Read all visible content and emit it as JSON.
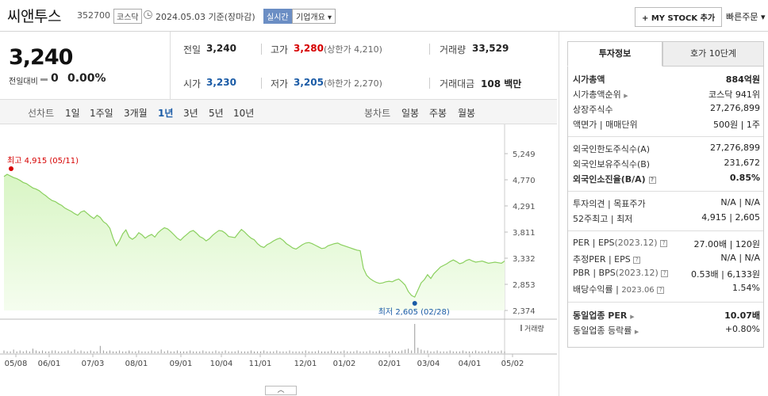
{
  "header": {
    "name": "씨앤투스",
    "code": "352700",
    "market": "코스닥",
    "date": "2024.05.03",
    "basis": "기준(장마감)",
    "realtime": "실시간",
    "company_info": "기업개요 ▾",
    "mystock": "+ MY STOCK 추가",
    "quick_order": "빠른주문 ▾"
  },
  "price": {
    "current": "3,240",
    "change_label": "전일대비",
    "change_value": "0",
    "change_pct": "0.00%"
  },
  "quote": {
    "prev_label": "전일",
    "prev": "3,240",
    "high_label": "고가",
    "high": "3,280",
    "upper_limit": "(상한가 4,210)",
    "volume_label": "거래량",
    "volume": "33,529",
    "open_label": "시가",
    "open": "3,230",
    "low_label": "저가",
    "low": "3,205",
    "lower_limit": "(하한가 2,270)",
    "amount_label": "거래대금",
    "amount": "108 백만"
  },
  "period": {
    "line_label": "선차트",
    "ranges": [
      "1일",
      "1주일",
      "3개월",
      "1년",
      "3년",
      "5년",
      "10년"
    ],
    "candle_label": "봉차트",
    "candles": [
      "일봉",
      "주봉",
      "월봉"
    ]
  },
  "chart_data": {
    "type": "area",
    "x_ticks": [
      "05/08",
      "06/01",
      "07/03",
      "08/01",
      "09/01",
      "10/04",
      "11/01",
      "12/01",
      "01/02",
      "02/01",
      "03/04",
      "04/01",
      "05/02"
    ],
    "y_ticks": [
      "5,249",
      "4,770",
      "4,291",
      "3,811",
      "3,332",
      "2,853",
      "2,374"
    ],
    "ylim": [
      2374,
      5249
    ],
    "high_label": "최고 4,915 (05/11)",
    "low_label": "최저 2,605 (02/28)",
    "volume_label": "거래량",
    "series": [
      {
        "values": [
          4830,
          4870,
          4840,
          4810,
          4790,
          4760,
          4720,
          4700,
          4660,
          4620,
          4600,
          4570,
          4520,
          4480,
          4430,
          4390,
          4370,
          4330,
          4300,
          4250,
          4220,
          4190,
          4150,
          4120,
          4180,
          4200,
          4150,
          4100,
          4060,
          4120,
          4080,
          4000,
          3960,
          3880,
          3700,
          3560,
          3650,
          3780,
          3850,
          3720,
          3680,
          3720,
          3800,
          3760,
          3700,
          3740,
          3770,
          3720,
          3800,
          3850,
          3890,
          3870,
          3820,
          3760,
          3700,
          3660,
          3720,
          3770,
          3820,
          3840,
          3790,
          3730,
          3700,
          3650,
          3690,
          3750,
          3800,
          3840,
          3830,
          3790,
          3730,
          3720,
          3710,
          3790,
          3860,
          3810,
          3750,
          3700,
          3670,
          3600,
          3550,
          3530,
          3580,
          3610,
          3650,
          3680,
          3700,
          3660,
          3600,
          3560,
          3520,
          3500,
          3540,
          3580,
          3610,
          3620,
          3600,
          3570,
          3540,
          3510,
          3520,
          3560,
          3580,
          3600,
          3610,
          3580,
          3560,
          3540,
          3520,
          3500,
          3480,
          3470,
          3150,
          3020,
          2960,
          2920,
          2890,
          2870,
          2880,
          2900,
          2910,
          2900,
          2930,
          2950,
          2900,
          2840,
          2720,
          2650,
          2620,
          2750,
          2880,
          2940,
          3030,
          2960,
          3050,
          3110,
          3170,
          3200,
          3230,
          3270,
          3300,
          3270,
          3230,
          3250,
          3290,
          3310,
          3280,
          3260,
          3270,
          3280,
          3260,
          3240,
          3250,
          3260,
          3250,
          3240,
          3280
        ]
      }
    ],
    "volume": [
      3,
      2,
      2,
      4,
      2,
      3,
      2,
      3,
      2,
      5,
      3,
      2,
      3,
      2,
      2,
      3,
      3,
      2,
      2,
      2,
      3,
      2,
      4,
      2,
      3,
      2,
      2,
      3,
      2,
      2,
      8,
      3,
      2,
      3,
      2,
      2,
      3,
      2,
      2,
      2,
      3,
      2,
      2,
      3,
      2,
      2,
      2,
      3,
      2,
      2,
      4,
      2,
      3,
      2,
      2,
      3,
      2,
      2,
      2,
      3,
      2,
      2,
      2,
      3,
      2,
      2,
      2,
      3,
      2,
      2,
      3,
      2,
      2,
      2,
      3,
      2,
      2,
      2,
      3,
      2,
      2,
      2,
      3,
      2,
      2,
      2,
      3,
      2,
      2,
      2,
      3,
      2,
      2,
      2,
      2,
      3,
      2,
      2,
      2,
      3,
      2,
      2,
      2,
      3,
      2,
      2,
      2,
      3,
      2,
      2,
      2,
      3,
      2,
      2,
      2,
      3,
      2,
      2,
      2,
      3,
      2,
      2,
      2,
      3,
      2,
      2,
      3,
      4,
      5,
      3,
      32,
      6,
      4,
      3,
      3,
      2,
      2,
      3,
      2,
      2,
      2,
      3,
      2,
      2,
      2,
      3,
      2,
      2,
      2,
      3,
      2,
      2,
      2,
      3,
      2,
      2,
      2,
      3,
      2
    ]
  },
  "info": {
    "tab_active": "투자정보",
    "tab_other": "호가 10단계",
    "market_cap_label": "시가총액",
    "market_cap": "884억원",
    "rank_label": "시가총액순위",
    "rank": "코스닥 941위",
    "shares_label": "상장주식수",
    "shares": "27,276,899",
    "par_label": "액면가",
    "unit_label": "매매단위",
    "par": "500원",
    "unit": "1주",
    "foreign_limit_label": "외국인한도주식수(A)",
    "foreign_limit": "27,276,899",
    "foreign_hold_label": "외국인보유주식수(B)",
    "foreign_hold": "231,672",
    "foreign_ratio_label": "외국인소진율(B/A)",
    "foreign_ratio": "0.85%",
    "opinion_label": "투자의견",
    "target_label": "목표주가",
    "opinion": "N/A",
    "target": "N/A",
    "w52_high_label": "52주최고",
    "w52_low_label": "최저",
    "w52_high": "4,915",
    "w52_low": "2,605",
    "per_label": "PER",
    "eps_label": "EPS",
    "eps_period": "(2023.12)",
    "per": "27.00배",
    "eps": "120원",
    "est_per_label": "추정PER",
    "est_eps_label": "EPS",
    "est_per": "N/A",
    "est_eps": "N/A",
    "pbr_label": "PBR",
    "bps_label": "BPS",
    "bps_period": "(2023.12)",
    "pbr": "0.53배",
    "bps": "6,133원",
    "div_label": "배당수익률",
    "div_period": "2023.06",
    "div": "1.54%",
    "ind_per_label": "동일업종 PER",
    "ind_per": "10.07배",
    "ind_chg_label": "동일업종 등락률",
    "ind_chg": "+0.80%"
  }
}
